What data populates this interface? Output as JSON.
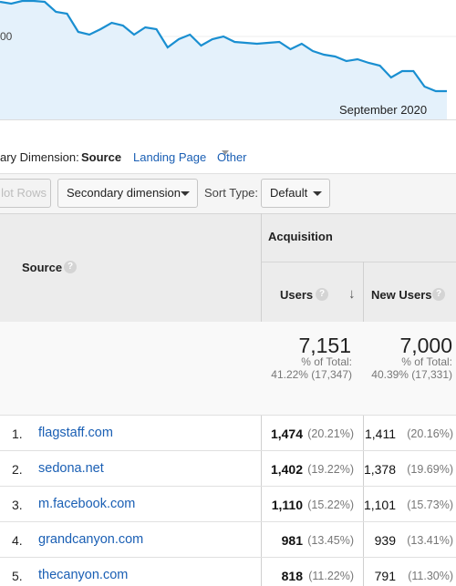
{
  "chart": {
    "ytick_label": "00",
    "xlabel": "September 2020",
    "line_color": "#1a8fd1",
    "fill_color": "#e4f1fb",
    "series_values": [
      98,
      96,
      99,
      99,
      98,
      87,
      85,
      65,
      62,
      68,
      75,
      72,
      62,
      70,
      68,
      48,
      57,
      62,
      50,
      57,
      60,
      54,
      53,
      52,
      53,
      54,
      46,
      52,
      44,
      40,
      38,
      33,
      35,
      31,
      28,
      15,
      22,
      22,
      5,
      0,
      0
    ],
    "y_domain": [
      0,
      100
    ]
  },
  "dimensions": {
    "label": "ary Dimension:",
    "active": "Source",
    "landing": "Landing Page",
    "other": "Other"
  },
  "toolbar": {
    "plot_rows": "lot Rows",
    "secondary": "Secondary dimension",
    "sort_type_label": "Sort Type:",
    "sort_default": "Default"
  },
  "table": {
    "header_source": "Source",
    "header_acquisition": "Acquisition",
    "header_users": "Users",
    "header_new_users": "New Users",
    "help_glyph": "?",
    "sort_glyph": "↓",
    "totals": {
      "users": "7,151",
      "users_pct_label": "% of Total:",
      "users_pct": "41.22% (17,347)",
      "new_users": "7,000",
      "new_users_pct_label": "% of Total:",
      "new_users_pct": "40.39% (17,331)"
    },
    "rows": [
      {
        "num": "1.",
        "source": "flagstaff.com",
        "users": "1,474",
        "users_pct": "(20.21%)",
        "new_users": "1,411",
        "new_users_pct": "(20.16%)"
      },
      {
        "num": "2.",
        "source": "sedona.net",
        "users": "1,402",
        "users_pct": "(19.22%)",
        "new_users": "1,378",
        "new_users_pct": "(19.69%)"
      },
      {
        "num": "3.",
        "source": "m.facebook.com",
        "users": "1,110",
        "users_pct": "(15.22%)",
        "new_users": "1,101",
        "new_users_pct": "(15.73%)"
      },
      {
        "num": "4.",
        "source": "grandcanyon.com",
        "users": "981",
        "users_pct": "(13.45%)",
        "new_users": "939",
        "new_users_pct": "(13.41%)"
      },
      {
        "num": "5.",
        "source": "thecanyon.com",
        "users": "818",
        "users_pct": "(11.22%)",
        "new_users": "791",
        "new_users_pct": "(11.30%)"
      }
    ]
  }
}
